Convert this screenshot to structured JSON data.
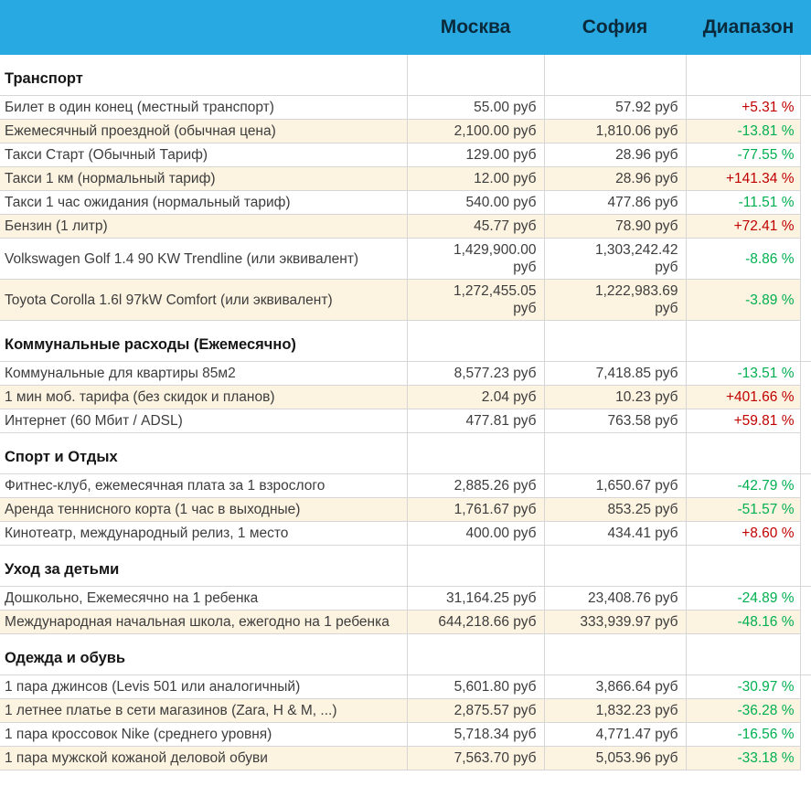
{
  "colors": {
    "header_bg": "#29A9E1",
    "header_text": "#0A2A3C",
    "row_alt_bg": "#FCF3E1",
    "increase_pct_color": "#C00000",
    "decrease_pct_color": "#00B050",
    "border": "#D6D6D6",
    "text": "#3D3D3D"
  },
  "chart_data": {
    "type": "table",
    "columns": [
      "Москва",
      "София",
      "Диапазон"
    ],
    "sections": [
      {
        "title": "Транспорт",
        "rows": [
          {
            "label": "Билет в один конец (местный транспорт)",
            "moscow": "55.00 руб",
            "sofia": "57.92 руб",
            "range": "+5.31 %"
          },
          {
            "label": "Ежемесячный проездной (обычная цена)",
            "moscow": "2,100.00 руб",
            "sofia": "1,810.06 руб",
            "range": "-13.81 %"
          },
          {
            "label": "Такси Старт (Обычный Тариф)",
            "moscow": "129.00 руб",
            "sofia": "28.96 руб",
            "range": "-77.55 %"
          },
          {
            "label": "Такси 1 км (нормальный тариф)",
            "moscow": "12.00 руб",
            "sofia": "28.96 руб",
            "range": "+141.34 %"
          },
          {
            "label": "Такси 1 час ожидания (нормальный тариф)",
            "moscow": "540.00 руб",
            "sofia": "477.86 руб",
            "range": "-11.51 %"
          },
          {
            "label": "Бензин (1 литр)",
            "moscow": "45.77 руб",
            "sofia": "78.90 руб",
            "range": "+72.41 %"
          },
          {
            "label": "Volkswagen Golf 1.4 90 KW Trendline (или эквивалент)",
            "moscow": "1,429,900.00 руб",
            "sofia": "1,303,242.42 руб",
            "range": "-8.86 %"
          },
          {
            "label": "Toyota Corolla 1.6l 97kW Comfort (или эквивалент)",
            "moscow": "1,272,455.05 руб",
            "sofia": "1,222,983.69 руб",
            "range": "-3.89 %"
          }
        ]
      },
      {
        "title": "Коммунальные расходы (Ежемесячно)",
        "rows": [
          {
            "label": "Коммунальные для квартиры 85м2",
            "moscow": "8,577.23 руб",
            "sofia": "7,418.85 руб",
            "range": "-13.51 %"
          },
          {
            "label": "1 мин моб. тарифа (без скидок и планов)",
            "moscow": "2.04 руб",
            "sofia": "10.23 руб",
            "range": "+401.66 %"
          },
          {
            "label": "Интернет (60 Мбит / ADSL)",
            "moscow": "477.81 руб",
            "sofia": "763.58 руб",
            "range": "+59.81 %"
          }
        ]
      },
      {
        "title": "Спорт и Отдых",
        "rows": [
          {
            "label": "Фитнес-клуб, ежемесячная плата за 1 взрослого",
            "moscow": "2,885.26 руб",
            "sofia": "1,650.67 руб",
            "range": "-42.79 %"
          },
          {
            "label": "Аренда теннисного корта (1 час в выходные)",
            "moscow": "1,761.67 руб",
            "sofia": "853.25 руб",
            "range": "-51.57 %"
          },
          {
            "label": "Кинотеатр, международный релиз, 1 место",
            "moscow": "400.00 руб",
            "sofia": "434.41 руб",
            "range": "+8.60 %"
          }
        ]
      },
      {
        "title": "Уход за детьми",
        "rows": [
          {
            "label": "Дошкольно, Ежемесячно на 1 ребенка",
            "moscow": "31,164.25 руб",
            "sofia": "23,408.76 руб",
            "range": "-24.89 %"
          },
          {
            "label": "Международная начальная школа, ежегодно на 1 ребенка",
            "moscow": "644,218.66 руб",
            "sofia": "333,939.97 руб",
            "range": "-48.16 %"
          }
        ]
      },
      {
        "title": "Одежда и обувь",
        "rows": [
          {
            "label": "1 пара джинсов (Levis 501 или аналогичный)",
            "moscow": "5,601.80 руб",
            "sofia": "3,866.64 руб",
            "range": "-30.97 %"
          },
          {
            "label": "1 летнее платье в сети магазинов (Zara, H & M, ...)",
            "moscow": "2,875.57 руб",
            "sofia": "1,832.23 руб",
            "range": "-36.28 %"
          },
          {
            "label": "1 пара кроссовок Nike (среднего уровня)",
            "moscow": "5,718.34 руб",
            "sofia": "4,771.47 руб",
            "range": "-16.56 %"
          },
          {
            "label": "1 пара мужской кожаной деловой обуви",
            "moscow": "7,563.70 руб",
            "sofia": "5,053.96 руб",
            "range": "-33.18 %"
          }
        ]
      }
    ]
  }
}
